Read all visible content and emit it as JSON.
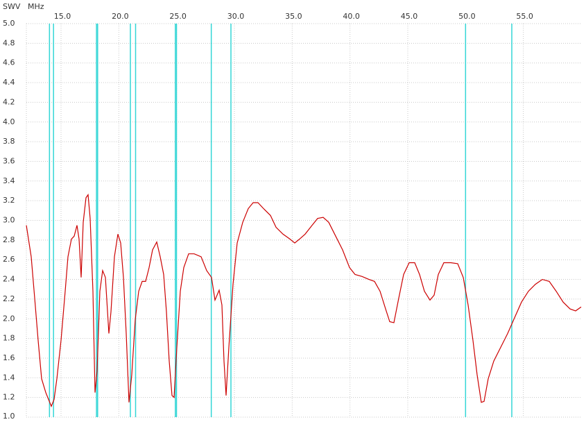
{
  "chart_data": {
    "type": "line",
    "ylabel": "SWV",
    "xlabel": "MHz",
    "xlim": [
      12,
      60
    ],
    "ylim": [
      1,
      5
    ],
    "xticks": [
      {
        "value": 15,
        "label": "15.0"
      },
      {
        "value": 20,
        "label": "20.0"
      },
      {
        "value": 25,
        "label": "25.0"
      },
      {
        "value": 30,
        "label": "30.0"
      },
      {
        "value": 35,
        "label": "35.0"
      },
      {
        "value": 40,
        "label": "40.0"
      },
      {
        "value": 45,
        "label": "45.0"
      },
      {
        "value": 50,
        "label": "50.0"
      },
      {
        "value": 55,
        "label": "55.0"
      }
    ],
    "yticks": [
      {
        "value": 1,
        "label": "1.0"
      },
      {
        "value": 1.2,
        "label": "1.2"
      },
      {
        "value": 1.4,
        "label": "1.4"
      },
      {
        "value": 1.6,
        "label": "1.6"
      },
      {
        "value": 1.8,
        "label": "1.8"
      },
      {
        "value": 2,
        "label": "2.0"
      },
      {
        "value": 2.2,
        "label": "2.2"
      },
      {
        "value": 2.4,
        "label": "2.4"
      },
      {
        "value": 2.6,
        "label": "2.6"
      },
      {
        "value": 2.8,
        "label": "2.8"
      },
      {
        "value": 3,
        "label": "3.0"
      },
      {
        "value": 3.2,
        "label": "3.2"
      },
      {
        "value": 3.4,
        "label": "3.4"
      },
      {
        "value": 3.6,
        "label": "3.6"
      },
      {
        "value": 3.8,
        "label": "3.8"
      },
      {
        "value": 4,
        "label": "4.0"
      },
      {
        "value": 4.2,
        "label": "4.2"
      },
      {
        "value": 4.4,
        "label": "4.4"
      },
      {
        "value": 4.6,
        "label": "4.6"
      },
      {
        "value": 4.8,
        "label": "4.8"
      },
      {
        "value": 5,
        "label": "5.0"
      }
    ],
    "grid": true,
    "marker_color": "#33d6d6",
    "markers": [
      14.0,
      14.35,
      18.068,
      18.168,
      21.0,
      21.45,
      24.89,
      24.99,
      28.0,
      29.7,
      50.0,
      54.0
    ],
    "series": [
      {
        "color": "#cc0000",
        "x": [
          12.0,
          12.42,
          12.72,
          13.02,
          13.32,
          13.68,
          13.92,
          14.16,
          14.4,
          14.64,
          15.0,
          15.36,
          15.6,
          15.9,
          16.14,
          16.38,
          16.56,
          16.74,
          16.92,
          17.16,
          17.34,
          17.52,
          17.76,
          17.94,
          18.12,
          18.36,
          18.6,
          18.84,
          19.14,
          19.32,
          19.62,
          19.92,
          20.16,
          20.4,
          20.64,
          20.88,
          21.12,
          21.42,
          21.72,
          22.02,
          22.32,
          22.62,
          22.92,
          23.28,
          23.58,
          23.88,
          24.12,
          24.36,
          24.6,
          24.78,
          25.02,
          25.32,
          25.62,
          26.04,
          26.52,
          27.12,
          27.6,
          28.02,
          28.32,
          28.68,
          28.92,
          29.1,
          29.28,
          29.52,
          29.88,
          30.24,
          30.72,
          31.2,
          31.62,
          32.04,
          32.52,
          33.12,
          33.6,
          34.2,
          34.8,
          35.22,
          35.64,
          36.12,
          36.72,
          37.2,
          37.68,
          38.16,
          38.76,
          39.36,
          39.96,
          40.44,
          41.04,
          41.64,
          42.12,
          42.6,
          43.08,
          43.44,
          43.8,
          44.22,
          44.64,
          45.12,
          45.6,
          46.02,
          46.44,
          46.92,
          47.28,
          47.64,
          48.12,
          48.72,
          49.32,
          49.8,
          50.22,
          50.64,
          51.0,
          51.36,
          51.6,
          51.96,
          52.44,
          53.04,
          53.64,
          54.24,
          54.84,
          55.44,
          56.04,
          56.64,
          57.24,
          57.84,
          58.44,
          59.04,
          59.52,
          60.0
        ],
        "values": [
          2.95,
          2.63,
          2.21,
          1.78,
          1.39,
          1.25,
          1.18,
          1.11,
          1.18,
          1.39,
          1.78,
          2.28,
          2.63,
          2.81,
          2.84,
          2.95,
          2.81,
          2.42,
          2.98,
          3.23,
          3.26,
          3.02,
          2.28,
          1.25,
          1.47,
          2.28,
          2.49,
          2.42,
          1.85,
          2.07,
          2.63,
          2.86,
          2.77,
          2.42,
          1.85,
          1.15,
          1.43,
          1.99,
          2.28,
          2.38,
          2.38,
          2.52,
          2.7,
          2.78,
          2.63,
          2.45,
          2.07,
          1.57,
          1.22,
          1.2,
          1.71,
          2.28,
          2.52,
          2.66,
          2.66,
          2.63,
          2.49,
          2.42,
          2.19,
          2.29,
          2.14,
          1.57,
          1.22,
          1.71,
          2.35,
          2.77,
          2.98,
          3.12,
          3.18,
          3.18,
          3.12,
          3.05,
          2.93,
          2.86,
          2.81,
          2.77,
          2.81,
          2.86,
          2.95,
          3.02,
          3.03,
          2.98,
          2.84,
          2.7,
          2.52,
          2.45,
          2.43,
          2.4,
          2.38,
          2.28,
          2.1,
          1.97,
          1.96,
          2.21,
          2.45,
          2.57,
          2.57,
          2.45,
          2.28,
          2.19,
          2.24,
          2.45,
          2.57,
          2.57,
          2.56,
          2.42,
          2.14,
          1.78,
          1.43,
          1.15,
          1.16,
          1.39,
          1.57,
          1.71,
          1.85,
          2.01,
          2.17,
          2.28,
          2.35,
          2.4,
          2.38,
          2.28,
          2.17,
          2.1,
          2.08,
          2.12
        ]
      }
    ]
  }
}
